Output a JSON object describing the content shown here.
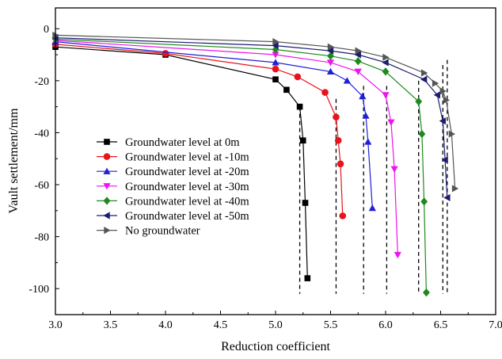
{
  "chart_data": {
    "type": "line",
    "xlabel": "Reduction coefficient",
    "ylabel": "Vault settlement/mm",
    "xlim": [
      3.0,
      7.0
    ],
    "ylim": [
      -110,
      8
    ],
    "xticks": [
      3.0,
      3.5,
      4.0,
      4.5,
      5.0,
      5.5,
      6.0,
      6.5,
      7.0
    ],
    "xtick_labels": [
      "3.0",
      "3.5",
      "4.0",
      "4.5",
      "5.0",
      "5.5",
      "6.0",
      "6.5",
      "7.0"
    ],
    "yticks": [
      0,
      -20,
      -40,
      -60,
      -80,
      -100
    ],
    "ytick_labels": [
      "0",
      "-20",
      "-40",
      "-60",
      "-80",
      "-100"
    ],
    "grid": false,
    "legend_position": "lower-left",
    "series": [
      {
        "name": "Groundwater level at 0m",
        "color": "#000000",
        "marker": "square",
        "x": [
          3.0,
          4.0,
          5.0,
          5.1,
          5.22,
          5.25,
          5.27,
          5.29
        ],
        "y": [
          -7,
          -10,
          -19.5,
          -23.5,
          -30,
          -43,
          -67,
          -96
        ]
      },
      {
        "name": "Groundwater level at -10m",
        "color": "#e8141c",
        "marker": "circle",
        "x": [
          3.0,
          4.0,
          5.0,
          5.2,
          5.45,
          5.55,
          5.57,
          5.59,
          5.61
        ],
        "y": [
          -6,
          -9.5,
          -15.5,
          -18.5,
          -24.5,
          -34,
          -43,
          -52,
          -72
        ]
      },
      {
        "name": "Groundwater level at -20m",
        "color": "#1f1fd6",
        "marker": "triangle-up",
        "x": [
          3.0,
          5.0,
          5.5,
          5.65,
          5.79,
          5.82,
          5.84,
          5.88
        ],
        "y": [
          -5,
          -13,
          -16.5,
          -20,
          -26,
          -33.5,
          -43.5,
          -69
        ]
      },
      {
        "name": "Groundwater level at -30m",
        "color": "#ee14ee",
        "marker": "triangle-down",
        "x": [
          3.0,
          5.0,
          5.5,
          5.75,
          6.0,
          6.05,
          6.08,
          6.11
        ],
        "y": [
          -4.5,
          -10,
          -13,
          -16.5,
          -25.5,
          -36,
          -54,
          -87
        ]
      },
      {
        "name": "Groundwater level at -40m",
        "color": "#1e8a1e",
        "marker": "diamond",
        "x": [
          3.0,
          5.0,
          5.5,
          5.75,
          6.0,
          6.3,
          6.33,
          6.35,
          6.37
        ],
        "y": [
          -4,
          -8,
          -10.5,
          -12.5,
          -16.5,
          -28,
          -40.5,
          -66.5,
          -101.5
        ]
      },
      {
        "name": "Groundwater level at -50m",
        "color": "#1c1c70",
        "marker": "triangle-left",
        "x": [
          3.0,
          5.0,
          5.5,
          5.75,
          6.0,
          6.35,
          6.47,
          6.52,
          6.54,
          6.56
        ],
        "y": [
          -3.5,
          -6.5,
          -8.5,
          -10,
          -13,
          -19.5,
          -25.5,
          -35.5,
          -50.5,
          -65
        ]
      },
      {
        "name": "No groundwater",
        "color": "#555555",
        "marker": "triangle-right",
        "x": [
          3.0,
          5.0,
          5.5,
          5.75,
          6.0,
          6.35,
          6.45,
          6.52,
          6.55,
          6.6,
          6.63
        ],
        "y": [
          -2.5,
          -5,
          -7,
          -8.5,
          -11,
          -17,
          -21,
          -24,
          -27.5,
          -40.5,
          -61.5
        ]
      }
    ],
    "reference_lines": [
      {
        "x": 5.22,
        "y_from": -30,
        "y_to": -102
      },
      {
        "x": 5.55,
        "y_from": -27,
        "y_to": -102
      },
      {
        "x": 5.8,
        "y_from": -22,
        "y_to": -102
      },
      {
        "x": 6.01,
        "y_from": -22,
        "y_to": -102
      },
      {
        "x": 6.3,
        "y_from": -20,
        "y_to": -102
      },
      {
        "x": 6.52,
        "y_from": -14,
        "y_to": -102
      },
      {
        "x": 6.56,
        "y_from": -12,
        "y_to": -102
      }
    ]
  }
}
